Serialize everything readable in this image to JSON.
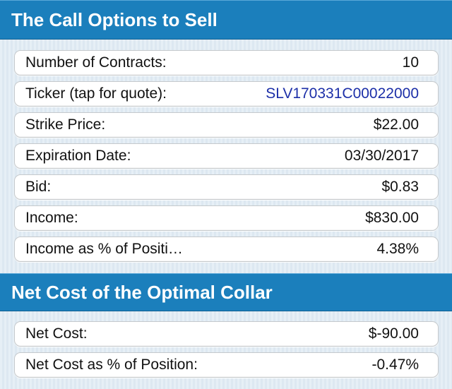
{
  "sections": [
    {
      "title": "The Call Options to Sell",
      "rows": [
        {
          "label": "Number of Contracts:",
          "value": "10"
        },
        {
          "label": "Ticker (tap for quote):",
          "value": "SLV170331C00022000"
        },
        {
          "label": "Strike Price:",
          "value": "$22.00"
        },
        {
          "label": "Expiration Date:",
          "value": "03/30/2017"
        },
        {
          "label": "Bid:",
          "value": "$0.83"
        },
        {
          "label": "Income:",
          "value": "$830.00"
        },
        {
          "label": "Income as % of Positi…",
          "value": "4.38%"
        }
      ]
    },
    {
      "title": "Net Cost of the Optimal Collar",
      "rows": [
        {
          "label": "Net Cost:",
          "value": "$-90.00"
        },
        {
          "label": "Net Cost as % of Position:",
          "value": "-0.47%"
        }
      ]
    }
  ],
  "colors": {
    "header_bg": "#1b7fbc",
    "link": "#1c2fa8"
  }
}
